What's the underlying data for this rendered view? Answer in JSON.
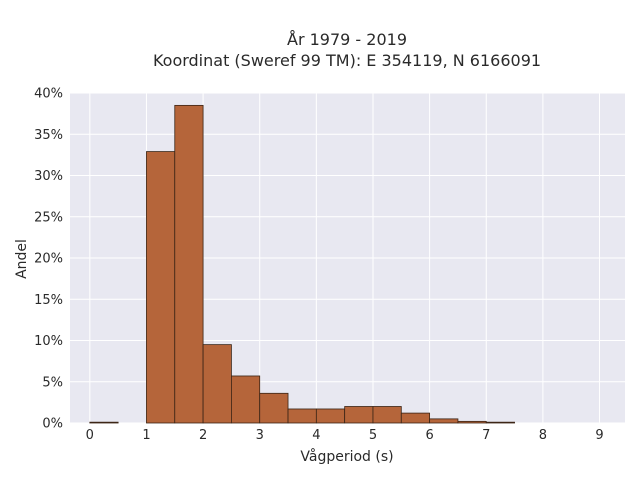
{
  "chart_data": {
    "type": "bar",
    "title_line1": "År 1979 - 2019",
    "title_line2": "Koordinat (Sweref 99 TM): E 354119, N 6166091",
    "xlabel": "Vågperiod (s)",
    "ylabel": "Andel",
    "xlim": [
      -0.35,
      9.45
    ],
    "ylim": [
      0,
      0.4
    ],
    "bin_width": 0.5,
    "x_ticks": [
      "0",
      "1",
      "2",
      "3",
      "4",
      "5",
      "6",
      "7",
      "8",
      "9"
    ],
    "y_ticks": [
      "0%",
      "5%",
      "10%",
      "15%",
      "20%",
      "25%",
      "30%",
      "35%",
      "40%"
    ],
    "bins": [
      {
        "start": 0.0,
        "value": 0.001
      },
      {
        "start": 1.0,
        "value": 0.329
      },
      {
        "start": 1.5,
        "value": 0.385
      },
      {
        "start": 2.0,
        "value": 0.095
      },
      {
        "start": 2.5,
        "value": 0.057
      },
      {
        "start": 3.0,
        "value": 0.036
      },
      {
        "start": 3.5,
        "value": 0.017
      },
      {
        "start": 4.0,
        "value": 0.017
      },
      {
        "start": 4.5,
        "value": 0.02
      },
      {
        "start": 5.0,
        "value": 0.02
      },
      {
        "start": 5.5,
        "value": 0.012
      },
      {
        "start": 6.0,
        "value": 0.005
      },
      {
        "start": 6.5,
        "value": 0.002
      },
      {
        "start": 7.0,
        "value": 0.001
      }
    ],
    "bar_color": "#b5653a",
    "bar_edge_color": "#3a2415",
    "plot_background": "#e8e8f1",
    "grid_color": "#ffffff",
    "grid": true
  }
}
